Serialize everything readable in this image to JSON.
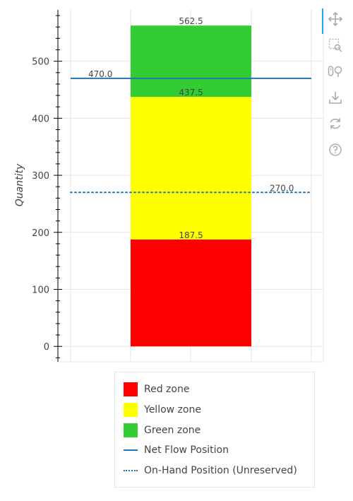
{
  "chart_data": {
    "type": "bar",
    "stacked": true,
    "ylabel": "Quantity",
    "xlabel": "",
    "ylim": [
      -27,
      590
    ],
    "y_ticks": [
      0,
      100,
      200,
      300,
      400,
      500
    ],
    "grid": true,
    "legend_position": "bottom",
    "stack": [
      {
        "name": "Red zone",
        "bottom": 0,
        "top": 187.5,
        "label": "187.5",
        "color": "#ff0000"
      },
      {
        "name": "Yellow zone",
        "bottom": 187.5,
        "top": 437.5,
        "label": "437.5",
        "color": "#ffff00"
      },
      {
        "name": "Green zone",
        "bottom": 437.5,
        "top": 562.5,
        "label": "562.5",
        "color": "#33cc33"
      }
    ],
    "lines": [
      {
        "name": "Net Flow Position",
        "value": 470.0,
        "label": "470.0",
        "style": "solid",
        "color": "#1f77b4"
      },
      {
        "name": "On-Hand Position (Unreserved)",
        "value": 270.0,
        "label": "270.0",
        "style": "dotted",
        "color": "#1f77b4"
      }
    ]
  },
  "legend": {
    "items": [
      {
        "label": "Red zone",
        "kind": "box",
        "color": "#ff0000"
      },
      {
        "label": "Yellow zone",
        "kind": "box",
        "color": "#ffff00"
      },
      {
        "label": "Green zone",
        "kind": "box",
        "color": "#33cc33"
      },
      {
        "label": "Net Flow Position",
        "kind": "solid-line",
        "color": "#1f77b4"
      },
      {
        "label": "On-Hand Position (Unreserved)",
        "kind": "dotted-line",
        "color": "#1f77b4"
      }
    ]
  },
  "toolbar": {
    "tools": [
      "pan-icon",
      "box-zoom-icon",
      "wheel-zoom-icon",
      "save-icon",
      "reset-icon",
      "help-icon"
    ],
    "accent": "#26aae1"
  }
}
